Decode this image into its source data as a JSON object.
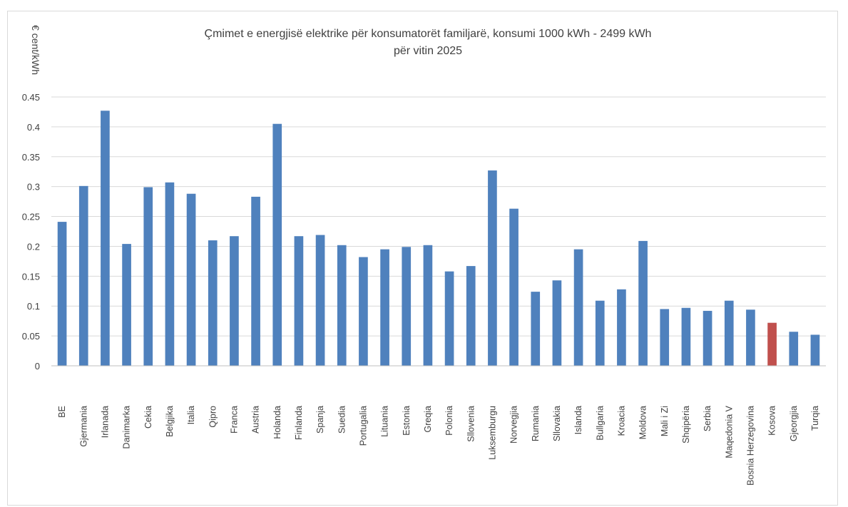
{
  "chart_data": {
    "type": "bar",
    "title": "Çmimet e energjisë elektrike për konsumatorët familjarë, konsumi 1000 kWh - 2499  kWh",
    "subtitle": "për vitin 2025",
    "ylabel": "€ cent/kWh",
    "xlabel": "",
    "ylim": [
      0,
      0.45
    ],
    "yticks": [
      "0",
      "0.05",
      "0.1",
      "0.15",
      "0.2",
      "0.25",
      "0.3",
      "0.35",
      "0.4",
      "0.45"
    ],
    "grid": true,
    "legend": "none",
    "categories": [
      "BE",
      "Gjermania",
      "Irlanada",
      "Danimarka",
      "Cekia",
      "Belgjika",
      "Italia",
      "Qipro",
      "Franca",
      "Austria",
      "Holanda",
      "Finlanda",
      "Spanja",
      "Suedia",
      "Portugalia",
      "Lituania",
      "Estonia",
      "Greqia",
      "Polonia",
      "Sllovenia",
      "Luksemburgu",
      "Norvegjia",
      "Rumania",
      "Sllovakia",
      "Islanda",
      "Bullgaria",
      "Kroacia",
      "Moldova",
      "Mali i Zi",
      "Shqipëria",
      "Serbia",
      "Maqedonia V",
      "Bosnia Herzegovina",
      "Kosova",
      "Gjeorgjia",
      "Turqia"
    ],
    "values": [
      0.241,
      0.301,
      0.427,
      0.204,
      0.299,
      0.307,
      0.288,
      0.21,
      0.217,
      0.283,
      0.405,
      0.217,
      0.219,
      0.202,
      0.182,
      0.195,
      0.199,
      0.202,
      0.158,
      0.167,
      0.327,
      0.263,
      0.124,
      0.143,
      0.195,
      0.109,
      0.128,
      0.209,
      0.095,
      0.097,
      0.092,
      0.109,
      0.094,
      0.072,
      0.057,
      0.052
    ],
    "colors": {
      "default": "#4f81bd",
      "highlight": "#c0504d",
      "highlight_category": "Kosova"
    }
  }
}
